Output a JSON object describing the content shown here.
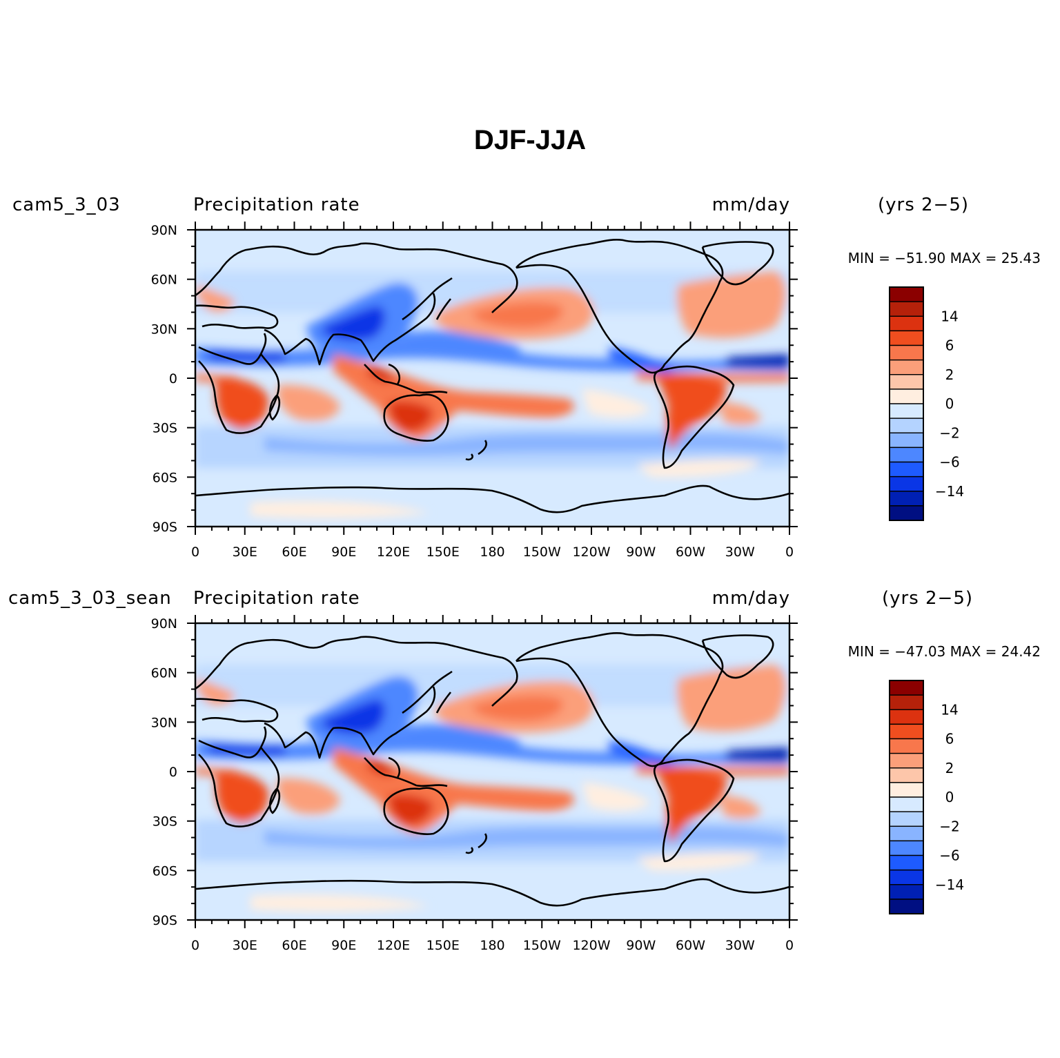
{
  "title": "DJF-JJA",
  "colorbar_levels": {
    "labels": [
      "14",
      "6",
      "2",
      "0",
      "-2",
      "-6",
      "-14"
    ],
    "colors": [
      "#8b0000",
      "#b5210a",
      "#dc3210",
      "#f04e1f",
      "#f8774c",
      "#fb9f7a",
      "#fdc6aa",
      "#ffeee0",
      "#d7eaff",
      "#b4d3ff",
      "#89b4ff",
      "#4d87ff",
      "#1e5bff",
      "#0a36e6",
      "#0020b4",
      "#000f82"
    ]
  },
  "chart_data": [
    {
      "type": "heatmap",
      "case": "cam5_3_03",
      "variable": "Precipitation rate",
      "units": "mm/day",
      "period": "(yrs 2−5)",
      "stats": {
        "min": -51.9,
        "max": 25.43
      },
      "minmax_text": "MIN = −51.90 MAX =  25.43",
      "x_ticks": [
        "0",
        "30E",
        "60E",
        "90E",
        "120E",
        "150E",
        "180",
        "150W",
        "120W",
        "90W",
        "60W",
        "30W",
        "0"
      ],
      "y_ticks": [
        "90N",
        "60N",
        "30N",
        "0",
        "30S",
        "60S",
        "90S"
      ],
      "xlim": [
        0,
        360
      ],
      "ylim": [
        -90,
        90
      ]
    },
    {
      "type": "heatmap",
      "case": "cam5_3_03_sean",
      "variable": "Precipitation rate",
      "units": "mm/day",
      "period": "(yrs 2−5)",
      "stats": {
        "min": -47.03,
        "max": 24.42
      },
      "minmax_text": "MIN = −47.03 MAX =  24.42",
      "x_ticks": [
        "0",
        "30E",
        "60E",
        "90E",
        "120E",
        "150E",
        "180",
        "150W",
        "120W",
        "90W",
        "60W",
        "30W",
        "0"
      ],
      "y_ticks": [
        "90N",
        "60N",
        "30N",
        "0",
        "30S",
        "60S",
        "90S"
      ],
      "xlim": [
        0,
        360
      ],
      "ylim": [
        -90,
        90
      ]
    }
  ]
}
